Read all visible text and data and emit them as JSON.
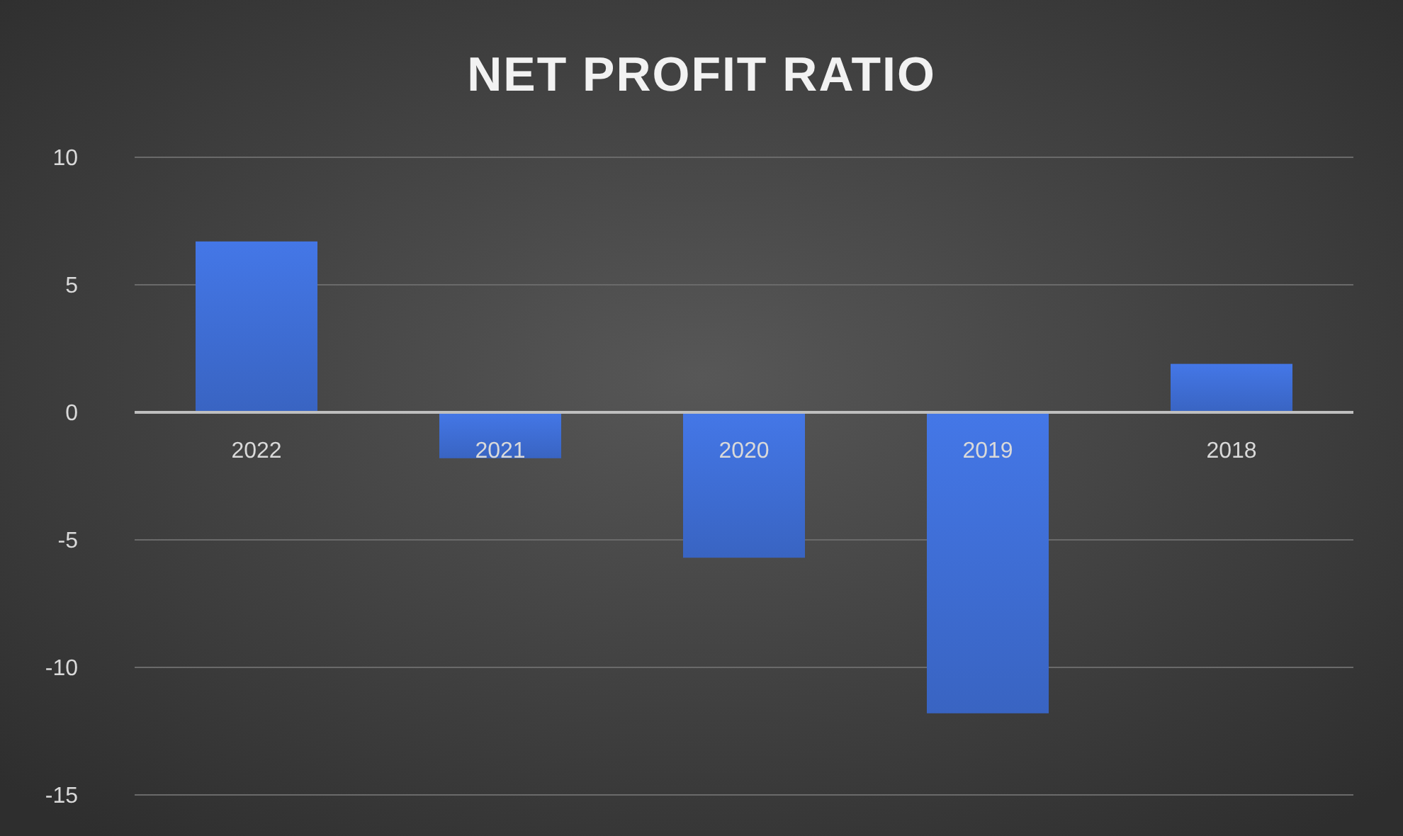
{
  "chart_data": {
    "type": "bar",
    "title": "NET PROFIT RATIO",
    "categories": [
      "2022",
      "2021",
      "2020",
      "2019",
      "2018"
    ],
    "values": [
      6.7,
      -1.8,
      -5.7,
      -11.8,
      1.9
    ],
    "color": "#3d6bd0",
    "ylim": [
      -15,
      10
    ],
    "yticks": [
      -15,
      -10,
      -5,
      0,
      5,
      10
    ],
    "grid": "y"
  }
}
